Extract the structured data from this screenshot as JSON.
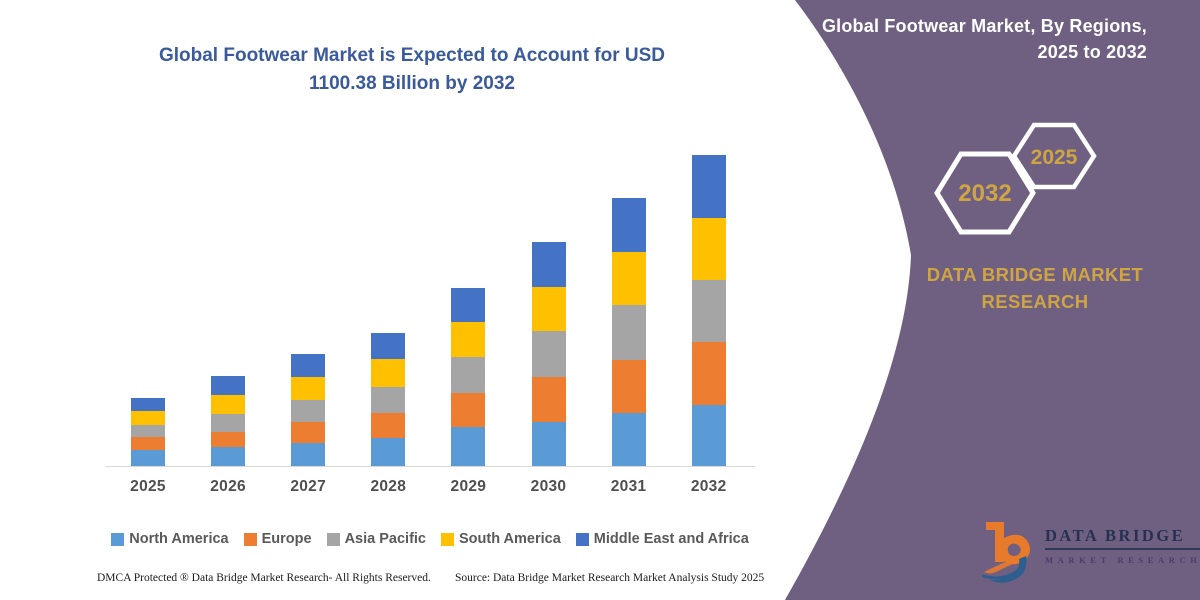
{
  "chart_title": {
    "line1": "Global Footwear Market is Expected to Account for USD",
    "line2": "1100.38 Billion by 2032",
    "color": "#3A5A9B"
  },
  "chart_data": {
    "type": "bar",
    "stacked": true,
    "title": "Global Footwear Market is Expected to Account for USD 1100.38 Billion by 2032",
    "unit": "USD Billion",
    "categories": [
      "2025",
      "2026",
      "2027",
      "2028",
      "2029",
      "2030",
      "2031",
      "2032"
    ],
    "series": [
      {
        "name": "North America",
        "color": "#5B9BD5",
        "values": [
          57,
          66,
          82,
          98,
          137,
          157,
          188,
          216
        ]
      },
      {
        "name": "Europe",
        "color": "#ED7D31",
        "values": [
          47,
          56,
          74,
          91,
          120,
          157,
          188,
          224
        ]
      },
      {
        "name": "Asia Pacific",
        "color": "#A5A5A5",
        "values": [
          41,
          63,
          79,
          92,
          130,
          162,
          192,
          219
        ]
      },
      {
        "name": "South America",
        "color": "#FFC000",
        "values": [
          51,
          67,
          80,
          97,
          124,
          157,
          188,
          217
        ]
      },
      {
        "name": "Middle East and Africa",
        "color": "#4472C4",
        "values": [
          44,
          67,
          80,
          94,
          118,
          158,
          192,
          224.38
        ]
      }
    ],
    "totals_estimated": [
      240,
      319,
      395,
      472,
      629,
      791,
      948,
      1100.38
    ],
    "ylim": [
      0,
      1153
    ],
    "gridlines": false,
    "y_axis_shown": false,
    "legend_position": "bottom",
    "axis_line_color": "#D9D9D9"
  },
  "panel": {
    "title_line1": "Global Footwear Market, By Regions,",
    "title_line2": "2025 to 2032",
    "hexagon_large_label": "2032",
    "hexagon_small_label": "2025",
    "brand_line1": "DATA BRIDGE MARKET",
    "brand_line2": "RESEARCH",
    "background_color": "#6F5F81",
    "accent_gold": "#CFA544"
  },
  "logo": {
    "wordmark": "DATA BRIDGE",
    "subtext": "MARKET RESEARCH"
  },
  "footer": {
    "left": "DMCA Protected ® Data Bridge Market Research-  All Rights Reserved.",
    "right": "Source: Data Bridge Market Research  Market Analysis Study 2025"
  }
}
